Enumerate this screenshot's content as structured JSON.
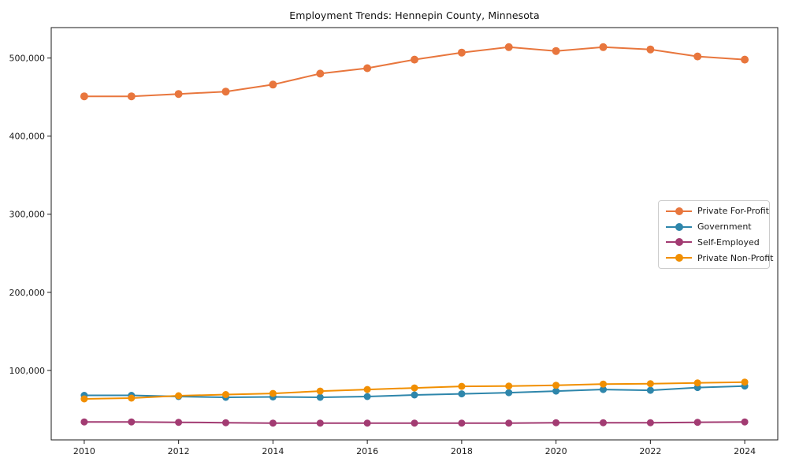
{
  "window": {
    "title": "Employment Trends: Hennepin County, Minnesota"
  },
  "chart_data": {
    "type": "line",
    "title": "Employment Trends: Hennepin County, Minnesota",
    "xlabel": "",
    "ylabel": "",
    "x": [
      2010,
      2011,
      2012,
      2013,
      2014,
      2015,
      2016,
      2017,
      2018,
      2019,
      2020,
      2021,
      2022,
      2023,
      2024
    ],
    "x_ticks": [
      2010,
      2012,
      2014,
      2016,
      2018,
      2020,
      2022,
      2024
    ],
    "y_ticks": [
      100000,
      200000,
      300000,
      400000,
      500000
    ],
    "xlim": [
      2009.3,
      2024.7
    ],
    "ylim": [
      11000,
      539000
    ],
    "grid": false,
    "legend_position": "center-right",
    "series": [
      {
        "name": "Private For-Profit",
        "color": "#e8763d",
        "marker": "circle",
        "values": [
          451000,
          451000,
          454000,
          457000,
          466000,
          480000,
          487000,
          498000,
          507000,
          514000,
          509000,
          514000,
          511000,
          502000,
          498000
        ]
      },
      {
        "name": "Government",
        "color": "#2e86ab",
        "marker": "circle",
        "values": [
          68000,
          68000,
          66500,
          65500,
          66000,
          65500,
          66500,
          68500,
          70000,
          71500,
          73500,
          75500,
          74500,
          78000,
          80000
        ]
      },
      {
        "name": "Self-Employed",
        "color": "#a23b72",
        "marker": "circle",
        "values": [
          34000,
          34000,
          33500,
          33000,
          32500,
          32500,
          32500,
          32500,
          32500,
          32500,
          33000,
          33000,
          33000,
          33500,
          34000
        ]
      },
      {
        "name": "Private Non-Profit",
        "color": "#f18f01",
        "marker": "circle",
        "values": [
          63500,
          64500,
          67500,
          69000,
          70500,
          73500,
          75500,
          77500,
          79500,
          80000,
          81000,
          82500,
          83000,
          84000,
          85000
        ]
      }
    ]
  }
}
